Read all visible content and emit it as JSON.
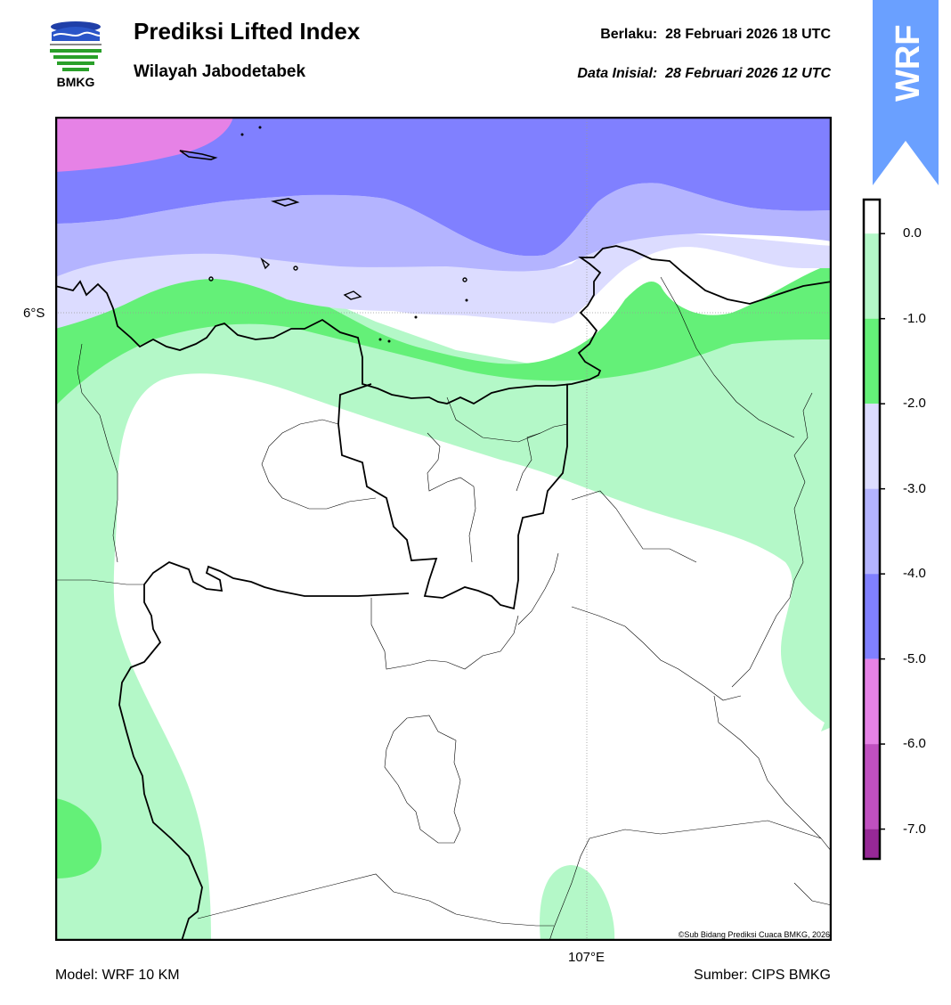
{
  "header": {
    "title": "Prediksi Lifted Index",
    "region": "Wilayah Jabodetabek",
    "valid_label": "Berlaku:",
    "valid_time": "28 Februari 2026 18 UTC",
    "init_label": "Data Inisial:",
    "init_time": "28 Februari 2026 12 UTC",
    "logo_text": "BMKG",
    "banner_text": "WRF"
  },
  "map": {
    "lat_label": "6°S",
    "lon_label": "107°E",
    "copyright": "©Sub Bidang Prediksi Cuaca BMKG, 2026"
  },
  "footer": {
    "model": "Model: WRF 10 KM",
    "source": "Sumber: CIPS BMKG"
  },
  "legend": {
    "ticks": [
      "0.0",
      "-1.0",
      "-2.0",
      "-3.0",
      "-4.0",
      "-5.0",
      "-6.0",
      "-7.0"
    ],
    "bands": [
      {
        "from": 0.4,
        "to": 0.0,
        "color": "#ffffff"
      },
      {
        "from": 0.0,
        "to": -1.0,
        "color": "#b4f8c8"
      },
      {
        "from": -1.0,
        "to": -2.0,
        "color": "#64f078"
      },
      {
        "from": -2.0,
        "to": -3.0,
        "color": "#dcdcff"
      },
      {
        "from": -3.0,
        "to": -4.0,
        "color": "#b4b4ff"
      },
      {
        "from": -4.0,
        "to": -5.0,
        "color": "#8080ff"
      },
      {
        "from": -5.0,
        "to": -6.0,
        "color": "#e682e6"
      },
      {
        "from": -6.0,
        "to": -7.0,
        "color": "#c050c0"
      },
      {
        "from": -7.0,
        "to": -7.35,
        "color": "#962896"
      }
    ]
  },
  "colors": {
    "banner": "#6aa0ff",
    "white": "#ffffff",
    "green_light": "#b4f8c8",
    "green": "#64f078",
    "lavender": "#dcdcff",
    "periwinkle": "#b4b4ff",
    "blue": "#8080ff",
    "pink": "#e682e6"
  }
}
